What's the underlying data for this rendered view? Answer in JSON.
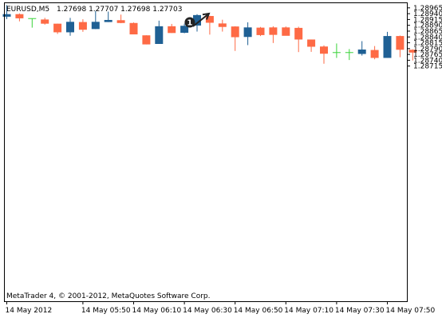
{
  "header": {
    "symbol": "EURUSD,M5",
    "ohlc": "1.27698 1.27707 1.27698 1.27703"
  },
  "footer": {
    "copyright": "MetaTrader 4, © 2001-2012, MetaQuotes Software Corp."
  },
  "annotation": {
    "marker_text": "1",
    "candle_index": 16
  },
  "colors": {
    "bull": "#1f6094",
    "bear": "#fe6a45",
    "doji": "#38d338",
    "axis": "#000000",
    "background": "#ffffff"
  },
  "chart_data": {
    "type": "candlestick",
    "ylim": [
      1.27705,
      1.28985
    ],
    "y_ticks": [
      "1.28965",
      "1.28940",
      "1.28915",
      "1.28890",
      "1.28865",
      "1.28840",
      "1.28815",
      "1.28790",
      "1.28765",
      "1.28740",
      "1.28715"
    ],
    "x_ticks": [
      {
        "label": "14 May 2012",
        "index": 0
      },
      {
        "label": "14 May 05:50",
        "index": 6
      },
      {
        "label": "14 May 06:10",
        "index": 10
      },
      {
        "label": "14 May 06:30",
        "index": 14
      },
      {
        "label": "14 May 06:50",
        "index": 18
      },
      {
        "label": "14 May 07:10",
        "index": 22
      },
      {
        "label": "14 May 07:30",
        "index": 26
      },
      {
        "label": "14 May 07:50",
        "index": 30
      }
    ],
    "candles": [
      {
        "o": 1.28927,
        "h": 1.28977,
        "l": 1.28917,
        "c": 1.28938
      },
      {
        "o": 1.28938,
        "h": 1.28941,
        "l": 1.28907,
        "c": 1.2892
      },
      {
        "o": 1.28919,
        "h": 1.28919,
        "l": 1.2888,
        "c": 1.28919
      },
      {
        "o": 1.28915,
        "h": 1.28922,
        "l": 1.28893,
        "c": 1.28897
      },
      {
        "o": 1.28897,
        "h": 1.28897,
        "l": 1.28853,
        "c": 1.2886
      },
      {
        "o": 1.2886,
        "h": 1.28922,
        "l": 1.28845,
        "c": 1.28905
      },
      {
        "o": 1.28904,
        "h": 1.28916,
        "l": 1.28862,
        "c": 1.28871
      },
      {
        "o": 1.28874,
        "h": 1.28951,
        "l": 1.28874,
        "c": 1.28905
      },
      {
        "o": 1.28904,
        "h": 1.28949,
        "l": 1.28904,
        "c": 1.28913
      },
      {
        "o": 1.28912,
        "h": 1.28936,
        "l": 1.28899,
        "c": 1.289
      },
      {
        "o": 1.289,
        "h": 1.28902,
        "l": 1.28851,
        "c": 1.28851
      },
      {
        "o": 1.28847,
        "h": 1.28847,
        "l": 1.28808,
        "c": 1.28808
      },
      {
        "o": 1.2881,
        "h": 1.2891,
        "l": 1.2881,
        "c": 1.28886
      },
      {
        "o": 1.28886,
        "h": 1.28896,
        "l": 1.28857,
        "c": 1.28857
      },
      {
        "o": 1.28858,
        "h": 1.28897,
        "l": 1.28856,
        "c": 1.28888
      },
      {
        "o": 1.28889,
        "h": 1.28938,
        "l": 1.28863,
        "c": 1.28934
      },
      {
        "o": 1.2893,
        "h": 1.28931,
        "l": 1.2885,
        "c": 1.28901
      },
      {
        "o": 1.28898,
        "h": 1.28914,
        "l": 1.28863,
        "c": 1.28883
      },
      {
        "o": 1.28885,
        "h": 1.28886,
        "l": 1.2878,
        "c": 1.28839
      },
      {
        "o": 1.2884,
        "h": 1.28903,
        "l": 1.28805,
        "c": 1.28881
      },
      {
        "o": 1.2888,
        "h": 1.28883,
        "l": 1.28844,
        "c": 1.28848
      },
      {
        "o": 1.28881,
        "h": 1.28886,
        "l": 1.28814,
        "c": 1.28849
      },
      {
        "o": 1.28881,
        "h": 1.28885,
        "l": 1.28846,
        "c": 1.28845
      },
      {
        "o": 1.28879,
        "h": 1.28884,
        "l": 1.28775,
        "c": 1.28829
      },
      {
        "o": 1.28829,
        "h": 1.28829,
        "l": 1.28776,
        "c": 1.28798
      },
      {
        "o": 1.28799,
        "h": 1.28804,
        "l": 1.28725,
        "c": 1.28768
      },
      {
        "o": 1.28773,
        "h": 1.28812,
        "l": 1.2875,
        "c": 1.28773
      },
      {
        "o": 1.28773,
        "h": 1.28788,
        "l": 1.28741,
        "c": 1.28772
      },
      {
        "o": 1.28767,
        "h": 1.28822,
        "l": 1.2876,
        "c": 1.28786
      },
      {
        "o": 1.28784,
        "h": 1.28801,
        "l": 1.28744,
        "c": 1.2875
      },
      {
        "o": 1.2875,
        "h": 1.28862,
        "l": 1.2875,
        "c": 1.28844
      },
      {
        "o": 1.28844,
        "h": 1.28846,
        "l": 1.28753,
        "c": 1.28785
      },
      {
        "o": 1.28785,
        "h": 1.28787,
        "l": 1.28739,
        "c": 1.28773
      }
    ]
  }
}
